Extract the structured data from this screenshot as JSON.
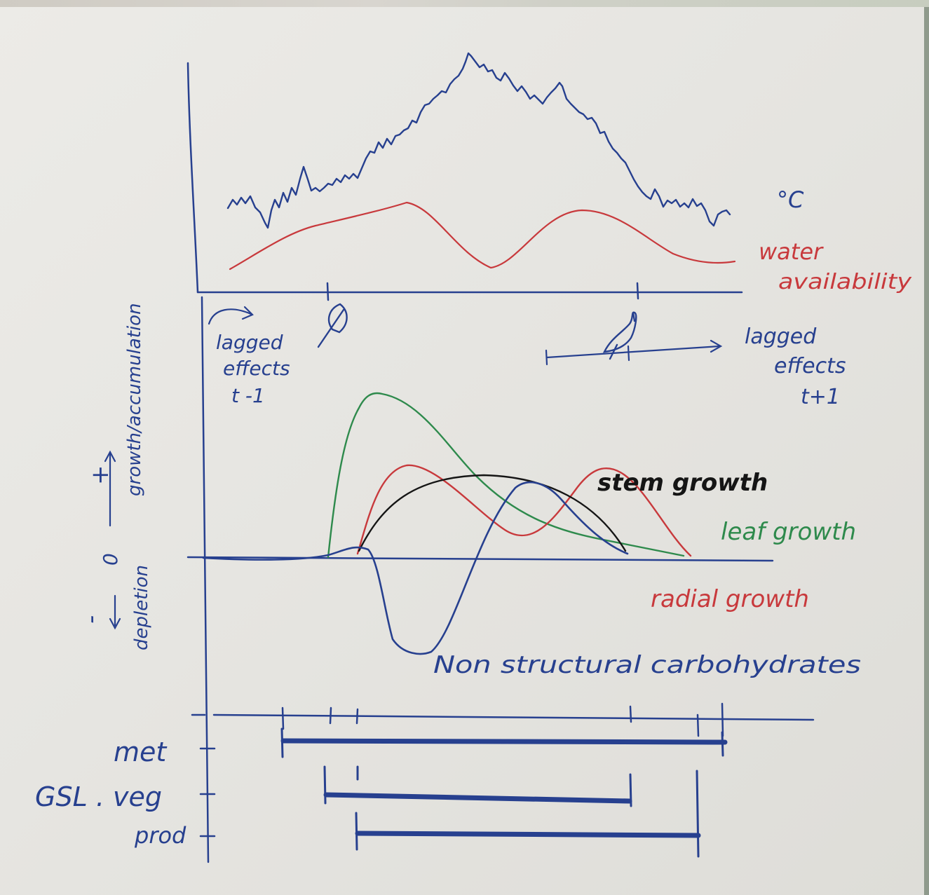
{
  "labels": {
    "temperature_unit": "°C",
    "water_line1": "water",
    "water_line2": "availability",
    "lagged_left_1": "lagged",
    "lagged_left_2": "effects",
    "lagged_left_3": "t -1",
    "lagged_right_1": "lagged",
    "lagged_right_2": "effects",
    "lagged_right_3": "t+1",
    "y_plus": "+",
    "y_zero": "0",
    "y_minus": "-",
    "y_up": "growth/accumulation",
    "y_down": "depletion",
    "stem": "stem growth",
    "leaf": "leaf growth",
    "radial": "radial growth",
    "nsc": "Non structural carbohydrates",
    "met": "met",
    "gsl_veg": "GSL . veg",
    "prod": "prod"
  },
  "colors": {
    "ink_blue": "#27408f",
    "red": "#c8393c",
    "green": "#2e8a4c",
    "black": "#151515"
  },
  "icons": [
    "leaf-icon",
    "bird-icon"
  ]
}
